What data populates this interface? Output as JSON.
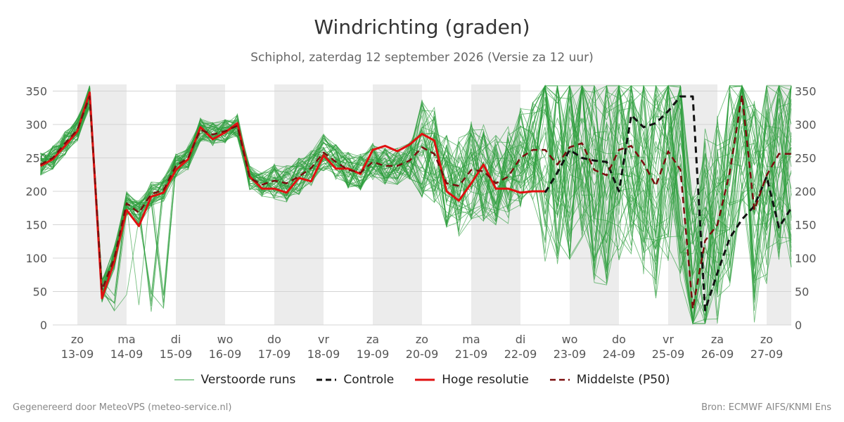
{
  "title": "Windrichting (graden)",
  "subtitle": "Schiphol, zaterdag 12 september 2026 (Versie za 12 uur)",
  "footer": {
    "left": "Gegenereerd door MeteoVPS (meteo-service.nl)",
    "right": "Bron: ECMWF AIFS/KNMI Ens"
  },
  "legend": [
    {
      "label": "Verstoorde runs",
      "color": "#2e9e3e",
      "style": "thin"
    },
    {
      "label": "Controle",
      "color": "#111111",
      "style": "dashed"
    },
    {
      "label": "Hoge resolutie",
      "color": "#e01010",
      "style": "solid"
    },
    {
      "label": "Middelste (P50)",
      "color": "#7a0d0d",
      "style": "dashed"
    }
  ],
  "chart_data": {
    "type": "line",
    "ylim": [
      0,
      360
    ],
    "yticks": [
      0,
      50,
      100,
      150,
      200,
      250,
      300,
      350
    ],
    "xlim": [
      12.5,
      27.5
    ],
    "x_unit": "dag van september (x = 13.0 is 13-09 00:00)",
    "day_labels": [
      {
        "day": "zo",
        "date": "13-09",
        "x": 13
      },
      {
        "day": "ma",
        "date": "14-09",
        "x": 14
      },
      {
        "day": "di",
        "date": "15-09",
        "x": 15
      },
      {
        "day": "wo",
        "date": "16-09",
        "x": 16
      },
      {
        "day": "do",
        "date": "17-09",
        "x": 17
      },
      {
        "day": "vr",
        "date": "18-09",
        "x": 18
      },
      {
        "day": "za",
        "date": "19-09",
        "x": 19
      },
      {
        "day": "zo",
        "date": "20-09",
        "x": 20
      },
      {
        "day": "ma",
        "date": "21-09",
        "x": 21
      },
      {
        "day": "di",
        "date": "22-09",
        "x": 22
      },
      {
        "day": "wo",
        "date": "23-09",
        "x": 23
      },
      {
        "day": "do",
        "date": "24-09",
        "x": 24
      },
      {
        "day": "vr",
        "date": "25-09",
        "x": 25
      },
      {
        "day": "za",
        "date": "26-09",
        "x": 26
      },
      {
        "day": "zo",
        "date": "27-09",
        "x": 27
      }
    ],
    "shaded_bands": [
      [
        13,
        14
      ],
      [
        15,
        16
      ],
      [
        17,
        18
      ],
      [
        19,
        20
      ],
      [
        21,
        22
      ],
      [
        23,
        24
      ],
      [
        25,
        26
      ],
      [
        27,
        27.5
      ]
    ],
    "grid": true,
    "series": [
      {
        "name": "Hoge resolutie",
        "color": "#e01010",
        "style": "solid",
        "x": [
          12.25,
          12.5,
          12.75,
          13,
          13.25,
          13.5,
          13.75,
          14,
          14.25,
          14.5,
          14.75,
          15,
          15.25,
          15.5,
          15.75,
          16,
          16.25,
          16.5,
          16.75,
          17,
          17.25,
          17.5,
          17.75,
          18,
          18.25,
          18.5,
          18.75,
          19,
          19.25,
          19.5,
          19.75,
          20,
          20.25,
          20.5,
          20.75,
          21,
          21.25,
          21.5,
          21.75,
          22,
          22.25,
          22.5
        ],
        "values": [
          238,
          248,
          268,
          290,
          348,
          40,
          95,
          172,
          148,
          192,
          198,
          232,
          248,
          296,
          278,
          288,
          302,
          222,
          204,
          204,
          198,
          220,
          215,
          254,
          234,
          234,
          226,
          262,
          268,
          260,
          270,
          286,
          276,
          200,
          186,
          212,
          240,
          204,
          204,
          198,
          200,
          200
        ]
      },
      {
        "name": "Controle",
        "color": "#111111",
        "style": "dashed",
        "x": [
          22.5,
          22.75,
          23,
          23.25,
          23.5,
          23.75,
          24,
          24.25,
          24.5,
          24.75,
          25,
          25.25,
          25.5,
          25.75,
          26,
          26.25,
          26.5,
          26.75,
          27,
          27.25,
          27.5
        ],
        "values": [
          198,
          228,
          262,
          250,
          246,
          244,
          200,
          314,
          296,
          302,
          320,
          342,
          342,
          22,
          78,
          130,
          158,
          178,
          222,
          146,
          175
        ]
      },
      {
        "name": "Middelste (P50)",
        "color": "#7a0d0d",
        "style": "dashed",
        "x": [
          12.25,
          12.5,
          12.75,
          13,
          13.25,
          13.5,
          13.75,
          14,
          14.25,
          14.5,
          14.75,
          15,
          15.25,
          15.5,
          15.75,
          16,
          16.25,
          16.5,
          16.75,
          17,
          17.25,
          17.5,
          17.75,
          18,
          18.25,
          18.5,
          18.75,
          19,
          19.25,
          19.5,
          19.75,
          20,
          20.25,
          20.5,
          20.75,
          21,
          21.25,
          21.5,
          21.75,
          22,
          22.25,
          22.5,
          22.75,
          23,
          23.25,
          23.5,
          23.75,
          24,
          24.25,
          24.5,
          24.75,
          25,
          25.25,
          25.5,
          25.75,
          26,
          26.25,
          26.5,
          26.75,
          27,
          27.25,
          27.5
        ],
        "values": [
          240,
          250,
          272,
          292,
          342,
          52,
          100,
          182,
          168,
          196,
          202,
          238,
          250,
          292,
          285,
          290,
          298,
          220,
          210,
          216,
          212,
          222,
          235,
          258,
          244,
          232,
          228,
          244,
          238,
          238,
          246,
          266,
          256,
          212,
          208,
          232,
          230,
          212,
          222,
          250,
          262,
          262,
          240,
          266,
          272,
          232,
          224,
          262,
          268,
          242,
          208,
          260,
          232,
          24,
          126,
          150,
          228,
          344,
          172,
          224,
          256,
          256
        ]
      }
    ],
    "ensemble_name": "Verstoorde runs",
    "ensemble_color": "#2e9e3e",
    "ensemble_count": 50
  }
}
